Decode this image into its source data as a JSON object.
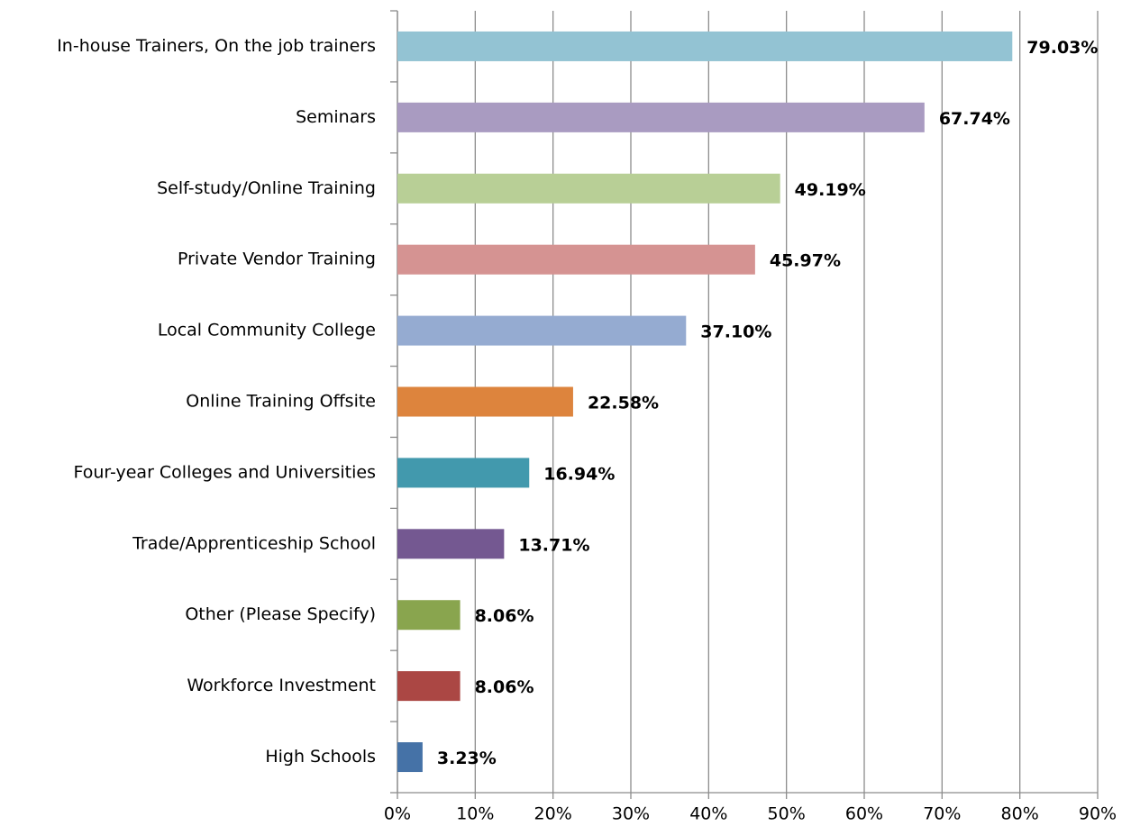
{
  "chart_data": {
    "type": "bar",
    "orientation": "horizontal",
    "categories": [
      "In-house Trainers, On the job trainers",
      "Seminars",
      "Self-study/Online Training",
      "Private Vendor Training",
      "Local Community College",
      "Online Training Offsite",
      "Four-year Colleges and Universities",
      "Trade/Apprenticeship School",
      "Other (Please Specify)",
      "Workforce Investment",
      "High Schools"
    ],
    "values": [
      79.03,
      67.74,
      49.19,
      45.97,
      37.1,
      22.58,
      16.94,
      13.71,
      8.06,
      8.06,
      3.23
    ],
    "value_labels": [
      "79.03%",
      "67.74%",
      "49.19%",
      "45.97%",
      "37.10%",
      "22.58%",
      "16.94%",
      "13.71%",
      "8.06%",
      "8.06%",
      "3.23%"
    ],
    "colors": [
      "#93c3d3",
      "#a99bc1",
      "#b8cf96",
      "#d59392",
      "#95abd1",
      "#dd843d",
      "#4299ad",
      "#745891",
      "#89a54e",
      "#ab4744",
      "#4572a7"
    ],
    "xlim": [
      0,
      90
    ],
    "xticks": [
      {
        "value": 0,
        "label": "0%"
      },
      {
        "value": 10,
        "label": "10%"
      },
      {
        "value": 20,
        "label": "20%"
      },
      {
        "value": 30,
        "label": "30%"
      },
      {
        "value": 40,
        "label": "40%"
      },
      {
        "value": 50,
        "label": "50%"
      },
      {
        "value": 60,
        "label": "60%"
      },
      {
        "value": 70,
        "label": "70%"
      },
      {
        "value": 80,
        "label": "80%"
      },
      {
        "value": 90,
        "label": "90%"
      }
    ],
    "grid": true
  }
}
